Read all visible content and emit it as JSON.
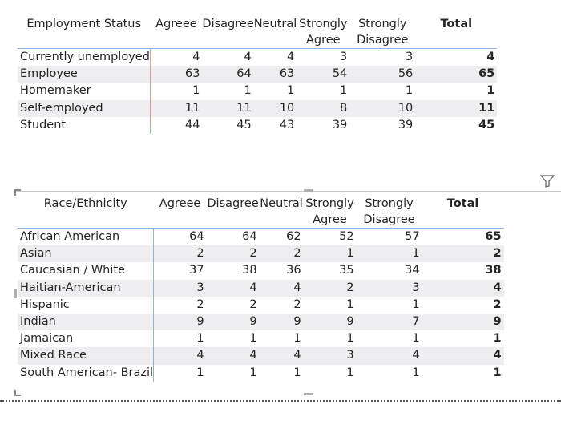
{
  "columns": [
    "Agreee",
    "Disagree",
    "Neutral",
    "Strongly Agree",
    "Strongly Disagree",
    "Total"
  ],
  "employment_table": {
    "row_header": "Employment Status",
    "rows": [
      {
        "label": "Currently unemployed",
        "values": [
          "4",
          "4",
          "4",
          "3",
          "3"
        ],
        "total": "4"
      },
      {
        "label": "Employee",
        "values": [
          "63",
          "64",
          "63",
          "54",
          "56"
        ],
        "total": "65"
      },
      {
        "label": "Homemaker",
        "values": [
          "1",
          "1",
          "1",
          "1",
          "1"
        ],
        "total": "1"
      },
      {
        "label": "Self-employed",
        "values": [
          "11",
          "11",
          "10",
          "8",
          "10"
        ],
        "total": "11"
      },
      {
        "label": "Student",
        "values": [
          "44",
          "45",
          "43",
          "39",
          "39"
        ],
        "total": "45"
      }
    ]
  },
  "race_table": {
    "row_header": "Race/Ethnicity",
    "rows": [
      {
        "label": "African American",
        "values": [
          "64",
          "64",
          "62",
          "52",
          "57"
        ],
        "total": "65"
      },
      {
        "label": "Asian",
        "values": [
          "2",
          "2",
          "2",
          "1",
          "1"
        ],
        "total": "2"
      },
      {
        "label": "Caucasian / White",
        "values": [
          "37",
          "38",
          "36",
          "35",
          "34"
        ],
        "total": "38"
      },
      {
        "label": "Haitian-American",
        "values": [
          "3",
          "4",
          "4",
          "2",
          "3"
        ],
        "total": "4"
      },
      {
        "label": "Hispanic",
        "values": [
          "2",
          "2",
          "2",
          "1",
          "1"
        ],
        "total": "2"
      },
      {
        "label": "Indian",
        "values": [
          "9",
          "9",
          "9",
          "9",
          "7"
        ],
        "total": "9"
      },
      {
        "label": "Jamaican",
        "values": [
          "1",
          "1",
          "1",
          "1",
          "1"
        ],
        "total": "1"
      },
      {
        "label": "Mixed Race",
        "values": [
          "4",
          "4",
          "4",
          "3",
          "4"
        ],
        "total": "4"
      },
      {
        "label": "South American- Brazil",
        "values": [
          "1",
          "1",
          "1",
          "1",
          "1"
        ],
        "total": "1"
      }
    ]
  },
  "icons": {
    "filter": "filter-icon"
  },
  "colors": {
    "grid_line": "#8ab4e8",
    "stripe": "#eeedf0",
    "text": "#252423"
  }
}
